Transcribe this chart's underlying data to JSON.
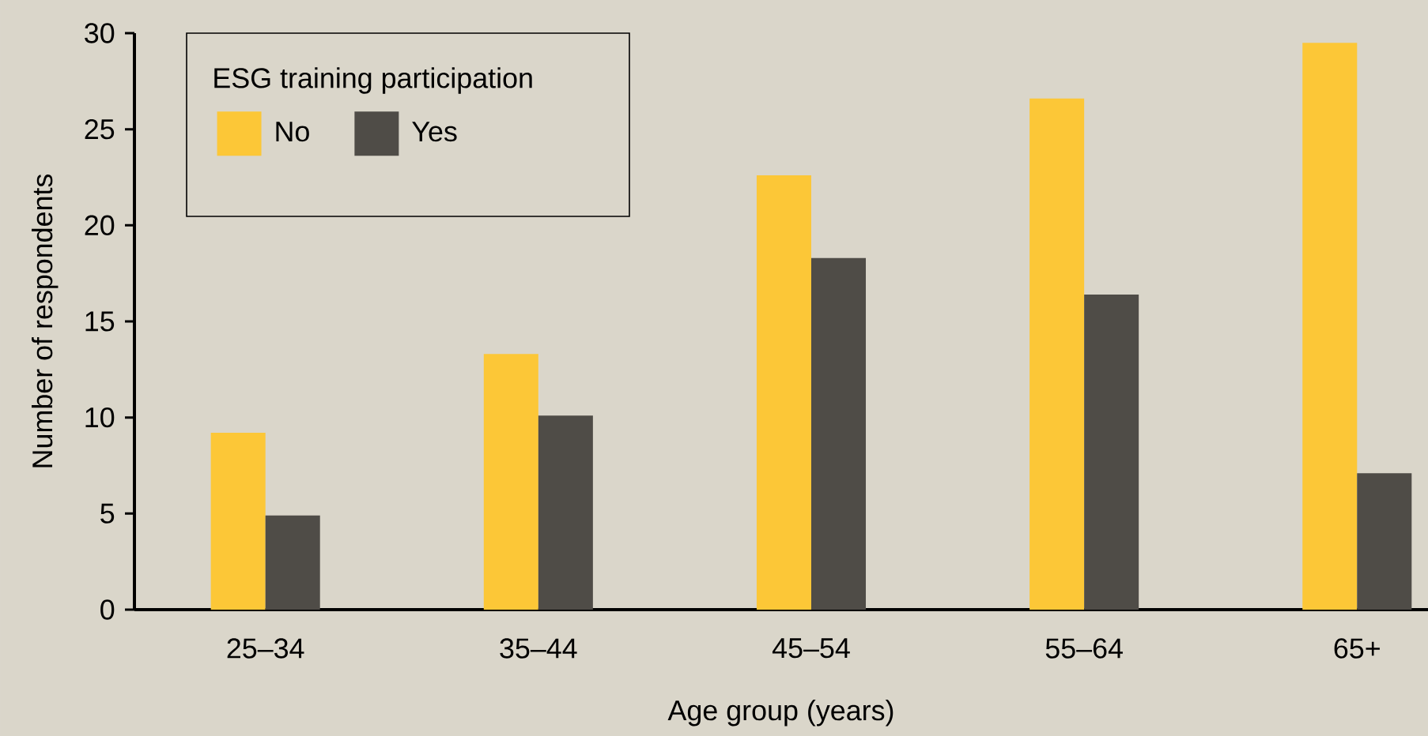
{
  "chart_data": {
    "type": "bar",
    "xlabel": "Age group (years)",
    "ylabel": "Number of respondents",
    "legend_title": "ESG training participation",
    "categories": [
      "25–34",
      "35–44",
      "45–54",
      "55–64",
      "65+"
    ],
    "series": [
      {
        "name": "No",
        "color": "#fcc737",
        "values": [
          9.2,
          13.3,
          22.6,
          26.6,
          29.5
        ]
      },
      {
        "name": "Yes",
        "color": "#4f4c47",
        "values": [
          4.9,
          10.1,
          18.3,
          16.4,
          7.1
        ]
      }
    ],
    "ylim": [
      0,
      30
    ],
    "yticks": [
      0,
      5,
      10,
      15,
      20,
      25,
      30
    ],
    "grid": false,
    "legend": "top left"
  }
}
